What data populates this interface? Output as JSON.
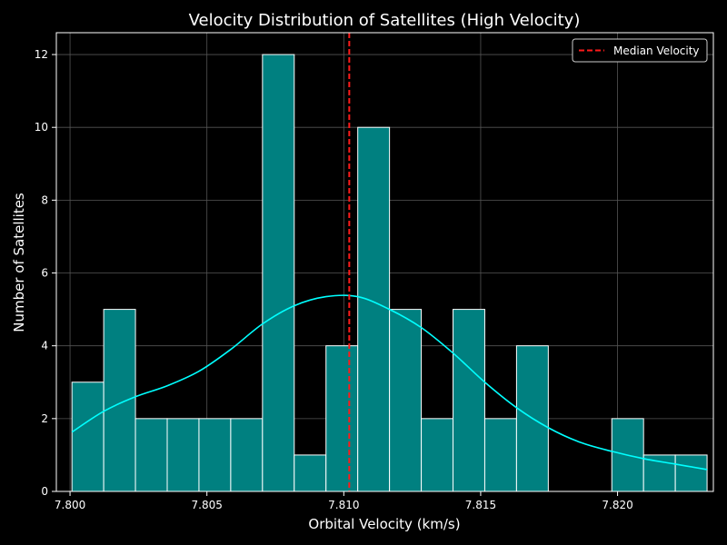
{
  "chart_data": {
    "type": "bar",
    "title": "Velocity Distribution of Satellites (High Velocity)",
    "xlabel": "Orbital Velocity (km/s)",
    "ylabel": "Number of Satellites",
    "xlim": [
      7.7995,
      7.8235
    ],
    "ylim": [
      0,
      12.6
    ],
    "x_ticks": [
      7.8,
      7.805,
      7.81,
      7.815,
      7.82
    ],
    "x_tick_labels": [
      "7.800",
      "7.805",
      "7.810",
      "7.815",
      "7.820"
    ],
    "y_ticks": [
      0,
      2,
      4,
      6,
      8,
      10,
      12
    ],
    "y_tick_labels": [
      "0",
      "2",
      "4",
      "6",
      "8",
      "10",
      "12"
    ],
    "grid": true,
    "bin_edges": [
      7.80007,
      7.80123,
      7.80239,
      7.80355,
      7.80471,
      7.80587,
      7.80703,
      7.80819,
      7.80935,
      7.81051,
      7.81167,
      7.81283,
      7.81399,
      7.81515,
      7.81631,
      7.81747,
      7.81863,
      7.81979,
      7.82095,
      7.82211,
      7.82327
    ],
    "values": [
      3,
      5,
      2,
      2,
      2,
      2,
      12,
      1,
      4,
      10,
      5,
      2,
      5,
      2,
      4,
      0,
      0,
      2,
      1,
      1
    ],
    "kde": {
      "x": [
        7.80007,
        7.80123,
        7.80239,
        7.80355,
        7.80471,
        7.80587,
        7.80703,
        7.80819,
        7.80935,
        7.81051,
        7.81167,
        7.81283,
        7.81399,
        7.81515,
        7.81631,
        7.81747,
        7.81863,
        7.81979,
        7.82095,
        7.82211,
        7.82327
      ],
      "y": [
        1.63,
        2.2,
        2.6,
        2.9,
        3.3,
        3.9,
        4.6,
        5.1,
        5.35,
        5.35,
        5.0,
        4.5,
        3.8,
        3.0,
        2.3,
        1.75,
        1.35,
        1.1,
        0.9,
        0.75,
        0.6
      ]
    },
    "median": 7.8102,
    "colors": {
      "bar_fill": "#008080",
      "bar_edge": "#ffffff",
      "kde": "#00ffff",
      "median": "#ff1a1a",
      "grid": "#555555"
    },
    "legend": {
      "placement": "top-right",
      "entries": [
        {
          "label": "Median Velocity",
          "style": "dashed-red-line"
        }
      ]
    }
  }
}
